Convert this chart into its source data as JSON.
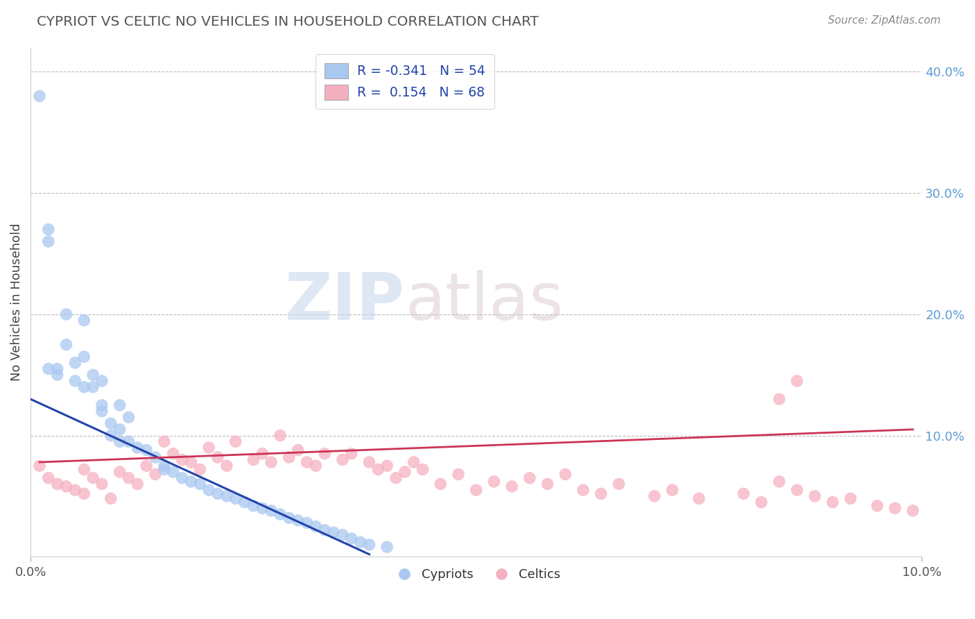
{
  "title": "CYPRIOT VS CELTIC NO VEHICLES IN HOUSEHOLD CORRELATION CHART",
  "source": "Source: ZipAtlas.com",
  "ylabel": "No Vehicles in Household",
  "xlim": [
    0.0,
    0.1
  ],
  "ylim": [
    0.0,
    0.42
  ],
  "right_yticklabels": [
    "10.0%",
    "20.0%",
    "30.0%",
    "40.0%"
  ],
  "right_yticks": [
    0.1,
    0.2,
    0.3,
    0.4
  ],
  "blue_color": "#A8C8F0",
  "pink_color": "#F5B0C0",
  "blue_line_color": "#2244AA",
  "pink_line_color": "#CC3355",
  "legend_blue_label": "R = -0.341   N = 54",
  "legend_pink_label": "R =  0.154   N = 68",
  "legend_cypriot": "Cypriots",
  "legend_celtic": "Celtics",
  "watermark_zip": "ZIP",
  "watermark_atlas": "atlas",
  "cypriot_x": [
    0.001,
    0.002,
    0.002,
    0.002,
    0.003,
    0.003,
    0.004,
    0.004,
    0.005,
    0.005,
    0.006,
    0.006,
    0.006,
    0.007,
    0.007,
    0.008,
    0.008,
    0.008,
    0.009,
    0.009,
    0.01,
    0.01,
    0.01,
    0.011,
    0.011,
    0.012,
    0.013,
    0.014,
    0.015,
    0.015,
    0.016,
    0.017,
    0.018,
    0.019,
    0.02,
    0.021,
    0.022,
    0.023,
    0.024,
    0.025,
    0.026,
    0.027,
    0.028,
    0.029,
    0.03,
    0.031,
    0.032,
    0.033,
    0.034,
    0.035,
    0.036,
    0.037,
    0.038,
    0.04
  ],
  "cypriot_y": [
    0.38,
    0.27,
    0.26,
    0.155,
    0.155,
    0.15,
    0.2,
    0.175,
    0.16,
    0.145,
    0.165,
    0.14,
    0.195,
    0.15,
    0.14,
    0.125,
    0.12,
    0.145,
    0.11,
    0.1,
    0.125,
    0.105,
    0.095,
    0.115,
    0.095,
    0.09,
    0.088,
    0.082,
    0.075,
    0.072,
    0.07,
    0.065,
    0.062,
    0.06,
    0.055,
    0.052,
    0.05,
    0.048,
    0.045,
    0.042,
    0.04,
    0.038,
    0.035,
    0.032,
    0.03,
    0.028,
    0.025,
    0.022,
    0.02,
    0.018,
    0.015,
    0.012,
    0.01,
    0.008
  ],
  "celtic_x": [
    0.001,
    0.002,
    0.003,
    0.004,
    0.005,
    0.006,
    0.006,
    0.007,
    0.008,
    0.009,
    0.01,
    0.011,
    0.012,
    0.013,
    0.014,
    0.015,
    0.016,
    0.017,
    0.018,
    0.019,
    0.02,
    0.021,
    0.022,
    0.023,
    0.025,
    0.026,
    0.027,
    0.028,
    0.029,
    0.03,
    0.031,
    0.032,
    0.033,
    0.035,
    0.036,
    0.038,
    0.039,
    0.04,
    0.041,
    0.042,
    0.043,
    0.044,
    0.046,
    0.048,
    0.05,
    0.052,
    0.054,
    0.056,
    0.058,
    0.06,
    0.062,
    0.064,
    0.066,
    0.07,
    0.072,
    0.075,
    0.08,
    0.082,
    0.084,
    0.086,
    0.088,
    0.09,
    0.092,
    0.095,
    0.097,
    0.099,
    0.084,
    0.086
  ],
  "celtic_y": [
    0.075,
    0.065,
    0.06,
    0.058,
    0.055,
    0.072,
    0.052,
    0.065,
    0.06,
    0.048,
    0.07,
    0.065,
    0.06,
    0.075,
    0.068,
    0.095,
    0.085,
    0.08,
    0.078,
    0.072,
    0.09,
    0.082,
    0.075,
    0.095,
    0.08,
    0.085,
    0.078,
    0.1,
    0.082,
    0.088,
    0.078,
    0.075,
    0.085,
    0.08,
    0.085,
    0.078,
    0.072,
    0.075,
    0.065,
    0.07,
    0.078,
    0.072,
    0.06,
    0.068,
    0.055,
    0.062,
    0.058,
    0.065,
    0.06,
    0.068,
    0.055,
    0.052,
    0.06,
    0.05,
    0.055,
    0.048,
    0.052,
    0.045,
    0.062,
    0.055,
    0.05,
    0.045,
    0.048,
    0.042,
    0.04,
    0.038,
    0.13,
    0.145
  ],
  "blue_line_x": [
    0.0,
    0.038
  ],
  "blue_line_y": [
    0.13,
    0.002
  ],
  "pink_line_x": [
    0.001,
    0.099
  ],
  "pink_line_y": [
    0.078,
    0.105
  ]
}
